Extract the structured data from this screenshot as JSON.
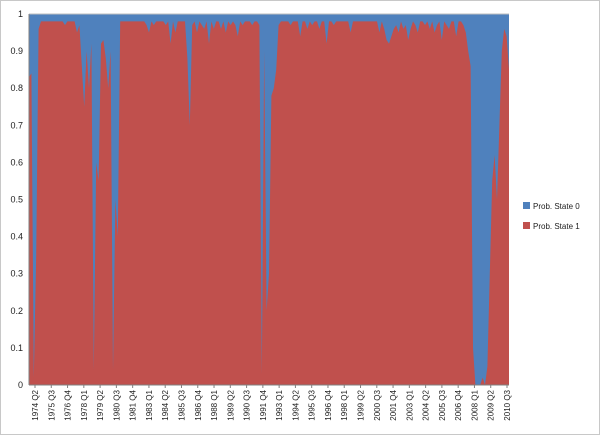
{
  "chart_data": {
    "type": "area",
    "stacked": true,
    "ylim": [
      0,
      1
    ],
    "y_ticks": [
      "0",
      "0.1",
      "0.2",
      "0.3",
      "0.4",
      "0.5",
      "0.6",
      "0.7",
      "0.8",
      "0.9",
      "1"
    ],
    "x_tick_labels": [
      "1974 Q2",
      "1975 Q3",
      "1976 Q4",
      "1978 Q1",
      "1979 Q2",
      "1980 Q3",
      "1981 Q4",
      "1983 Q1",
      "1984 Q2",
      "1985 Q3",
      "1986 Q4",
      "1988 Q1",
      "1989 Q2",
      "1990 Q3",
      "1991 Q4",
      "1993 Q1",
      "1994 Q2",
      "1995 Q3",
      "1996 Q4",
      "1998 Q1",
      "1999 Q2",
      "2000 Q3",
      "2001 Q4",
      "2003 Q1",
      "2004 Q2",
      "2005 Q3",
      "2006 Q4",
      "2008 Q1",
      "2009 Q2",
      "2010 Q3"
    ],
    "grid": "horizontal",
    "legend_position": "right",
    "series": [
      {
        "name": "Prob. State 0",
        "color": "#4f81bd"
      },
      {
        "name": "Prob. State 1",
        "color": "#c0504d"
      }
    ],
    "state1_values": [
      0.83,
      0.84,
      0.02,
      0.35,
      0.96,
      0.98,
      0.98,
      0.98,
      0.98,
      0.98,
      0.98,
      0.98,
      0.98,
      0.98,
      0.98,
      0.97,
      0.98,
      0.98,
      0.98,
      0.98,
      0.95,
      0.97,
      0.86,
      0.75,
      0.9,
      0.8,
      0.92,
      0.04,
      0.6,
      0.55,
      0.92,
      0.93,
      0.88,
      0.8,
      0.9,
      0.04,
      0.5,
      0.4,
      0.98,
      0.98,
      0.98,
      0.98,
      0.98,
      0.98,
      0.98,
      0.98,
      0.98,
      0.98,
      0.98,
      0.97,
      0.95,
      0.98,
      0.97,
      0.98,
      0.98,
      0.98,
      0.98,
      0.97,
      0.98,
      0.92,
      0.98,
      0.95,
      0.98,
      0.98,
      0.98,
      0.98,
      0.88,
      0.7,
      0.97,
      0.98,
      0.95,
      0.98,
      0.97,
      0.96,
      0.98,
      0.92,
      0.98,
      0.96,
      0.98,
      0.98,
      0.96,
      0.98,
      0.95,
      0.98,
      0.97,
      0.98,
      0.97,
      0.94,
      0.98,
      0.97,
      0.98,
      0.98,
      0.98,
      0.97,
      0.98,
      0.98,
      0.97,
      0.03,
      0.9,
      0.2,
      0.3,
      0.78,
      0.8,
      0.85,
      0.97,
      0.98,
      0.98,
      0.98,
      0.98,
      0.97,
      0.98,
      0.98,
      0.98,
      0.94,
      0.98,
      0.98,
      0.96,
      0.98,
      0.97,
      0.98,
      0.98,
      0.96,
      0.98,
      0.98,
      0.92,
      0.98,
      0.98,
      0.97,
      0.98,
      0.98,
      0.98,
      0.98,
      0.98,
      0.98,
      0.95,
      0.98,
      0.98,
      0.98,
      0.98,
      0.98,
      0.98,
      0.98,
      0.98,
      0.98,
      0.98,
      0.98,
      0.95,
      0.98,
      0.96,
      0.93,
      0.92,
      0.94,
      0.96,
      0.97,
      0.95,
      0.98,
      0.96,
      0.97,
      0.93,
      0.96,
      0.98,
      0.97,
      0.95,
      0.98,
      0.98,
      0.97,
      0.98,
      0.96,
      0.98,
      0.95,
      0.97,
      0.98,
      0.93,
      0.98,
      0.97,
      0.96,
      0.98,
      0.98,
      0.94,
      0.98,
      0.98,
      0.97,
      0.95,
      0.9,
      0.86,
      0.1,
      0.0,
      0.0,
      0.0,
      0.02,
      0.0,
      0.05,
      0.3,
      0.55,
      0.62,
      0.5,
      0.7,
      0.9,
      0.96,
      0.94,
      0.85
    ]
  }
}
